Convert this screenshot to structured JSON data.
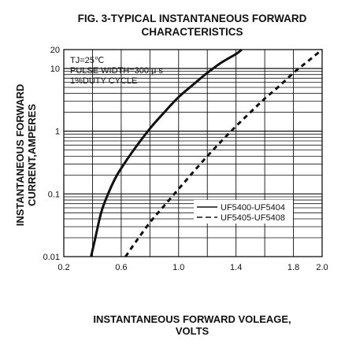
{
  "chart_data": {
    "type": "line",
    "title_line1": "FIG. 3-TYPICAL INSTANTANEOUS FORWARD",
    "title_line2": "CHARACTERISTICS",
    "ylabel_line1": "INSTANTANEOUS FORWARD",
    "ylabel_line2": "CURRENT,AMPERES",
    "xlabel_line1": "INSTANTANEOUS FORWARD VOLEAGE,",
    "xlabel_line2": "VOLTS",
    "xlim": [
      0.2,
      2.0
    ],
    "ylim": [
      0.01,
      20
    ],
    "y_scale": "log",
    "grid": true,
    "x_ticks": [
      {
        "value": 0.2,
        "label": "0.2"
      },
      {
        "value": 0.6,
        "label": "0.6"
      },
      {
        "value": 1.0,
        "label": "1.0"
      },
      {
        "value": 1.4,
        "label": "1.4"
      },
      {
        "value": 1.8,
        "label": "1.8"
      },
      {
        "value": 2.0,
        "label": "2.0"
      }
    ],
    "y_ticks": [
      {
        "value": 0.01,
        "label": "0.01"
      },
      {
        "value": 0.1,
        "label": "0.1"
      },
      {
        "value": 1,
        "label": "1"
      },
      {
        "value": 10,
        "label": "10"
      },
      {
        "value": 20,
        "label": "20"
      }
    ],
    "annotations": [
      "TJ=25℃",
      "PULSE WIDTH=300 μ s",
      "1%DUTY CYCLE"
    ],
    "legend_position": "lower-right",
    "series": [
      {
        "name": "UF5400-UF5404",
        "style": "solid",
        "color": "#111111",
        "x": [
          0.39,
          0.42,
          0.46,
          0.5,
          0.56,
          0.62,
          0.7,
          0.8,
          0.9,
          1.0,
          1.1,
          1.2,
          1.3,
          1.4,
          1.44
        ],
        "y": [
          0.01,
          0.02,
          0.05,
          0.09,
          0.18,
          0.3,
          0.55,
          1.1,
          2.0,
          3.5,
          5.5,
          8.5,
          12.5,
          17,
          20
        ]
      },
      {
        "name": "UF5405-UF5408",
        "style": "dashed",
        "color": "#111111",
        "x": [
          0.63,
          0.7,
          0.8,
          0.9,
          1.0,
          1.1,
          1.2,
          1.3,
          1.4,
          1.5,
          1.6,
          1.7,
          1.8,
          1.9,
          2.0
        ],
        "y": [
          0.01,
          0.017,
          0.035,
          0.065,
          0.12,
          0.22,
          0.4,
          0.7,
          1.2,
          2.0,
          3.3,
          5.2,
          8.5,
          13,
          20
        ]
      }
    ]
  }
}
